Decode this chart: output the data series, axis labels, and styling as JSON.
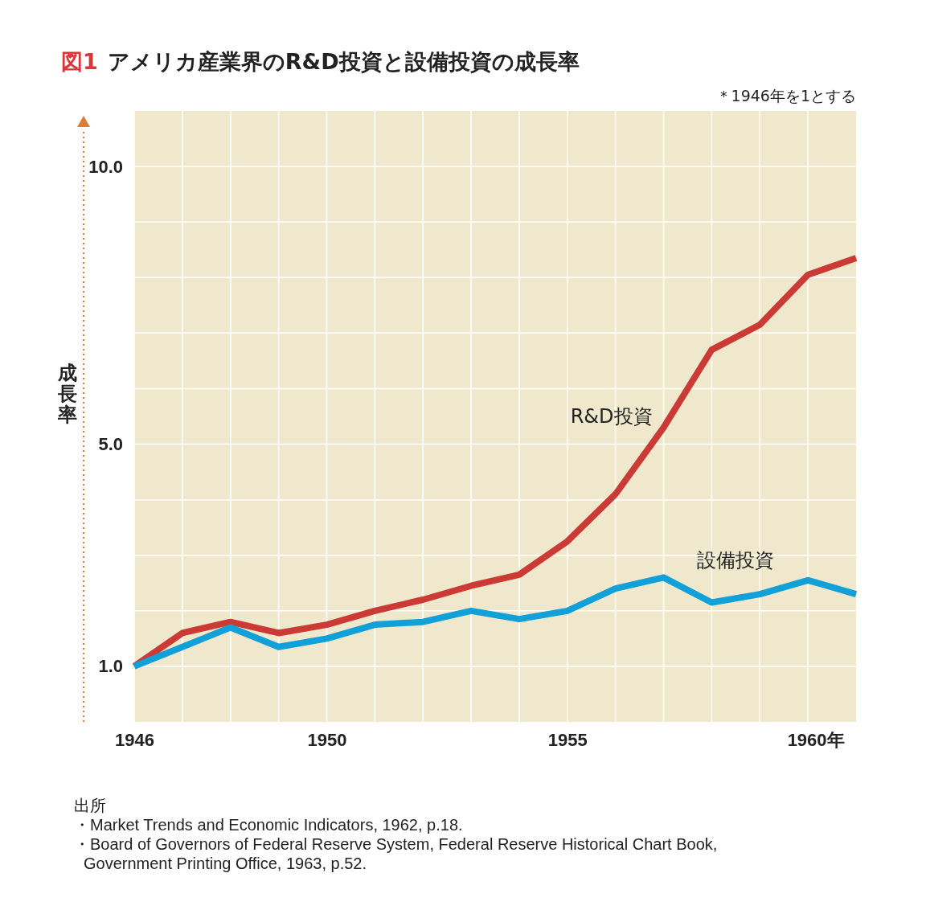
{
  "chart_data": {
    "type": "line",
    "title": "図1 アメリカ産業界のR&D投資と設備投資の成長率",
    "subtitle": "＊1946年を1とする",
    "ylabel": "成長率",
    "x": [
      1946,
      1947,
      1948,
      1949,
      1950,
      1951,
      1952,
      1953,
      1954,
      1955,
      1956,
      1957,
      1958,
      1959,
      1960,
      1961
    ],
    "series": [
      {
        "name": "R&D投資",
        "color": "#cc3a35",
        "values": [
          1.0,
          1.6,
          1.8,
          1.6,
          1.75,
          2.0,
          2.2,
          2.45,
          2.65,
          3.25,
          4.1,
          5.3,
          6.7,
          7.15,
          8.05,
          8.35
        ]
      },
      {
        "name": "設備投資",
        "color": "#12a0d8",
        "values": [
          1.0,
          1.35,
          1.7,
          1.35,
          1.5,
          1.75,
          1.8,
          2.0,
          1.85,
          2.0,
          2.4,
          2.6,
          2.15,
          2.3,
          2.55,
          2.3
        ]
      }
    ],
    "xlim": [
      1946,
      1961
    ],
    "xticks": [
      1946,
      {
        "value": 1947,
        "label": null
      },
      {
        "value": 1948,
        "label": null
      },
      {
        "value": 1949,
        "label": null
      },
      1950,
      {
        "value": 1951,
        "label": null
      },
      {
        "value": 1952,
        "label": null
      },
      {
        "value": 1953,
        "label": null
      },
      {
        "value": 1954,
        "label": null
      },
      1955,
      {
        "value": 1956,
        "label": null
      },
      {
        "value": 1957,
        "label": null
      },
      {
        "value": 1958,
        "label": null
      },
      {
        "value": 1959,
        "label": null
      },
      {
        "value": 1960,
        "label": "1960年"
      }
    ],
    "ylim": [
      0,
      11
    ],
    "yticks": [
      {
        "value": 1,
        "label": "1.0"
      },
      {
        "value": 2,
        "label": null
      },
      {
        "value": 3,
        "label": null
      },
      {
        "value": 4,
        "label": null
      },
      {
        "value": 5,
        "label": "5.0"
      },
      {
        "value": 6,
        "label": null
      },
      {
        "value": 7,
        "label": null
      },
      {
        "value": 8,
        "label": null
      },
      {
        "value": 9,
        "label": null
      },
      {
        "value": 10,
        "label": "10.0"
      }
    ],
    "grid": true,
    "legend": false,
    "marker": "none",
    "line_style": "solid",
    "annotations": [
      "出所",
      "・Market Trends and Economic Indicators, 1962, p.18.",
      "・Board of Governors of Federal Reserve System, Federal Reserve Historical Chart Book, Government Printing Office, 1963, p.52."
    ]
  }
}
